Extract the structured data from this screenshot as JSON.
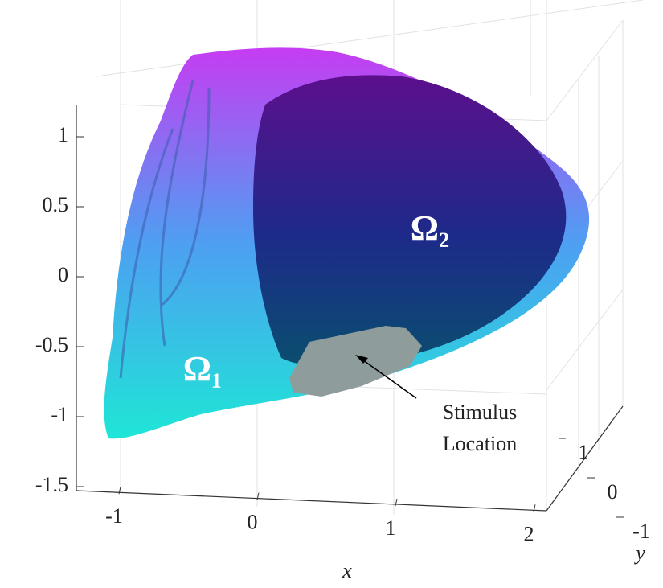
{
  "chart_data": {
    "type": "surface",
    "xlabel": "x",
    "ylabel": "y",
    "xticks": [
      -1,
      0,
      1,
      2
    ],
    "yticks": [
      -1,
      0,
      1
    ],
    "zticks": [
      1,
      0.5,
      0,
      -0.5,
      -1,
      -1.5
    ],
    "annotations": [
      {
        "text": "Ω₁"
      },
      {
        "text": "Ω₂"
      },
      {
        "lines": [
          "Stimulus",
          "Location"
        ]
      }
    ]
  }
}
